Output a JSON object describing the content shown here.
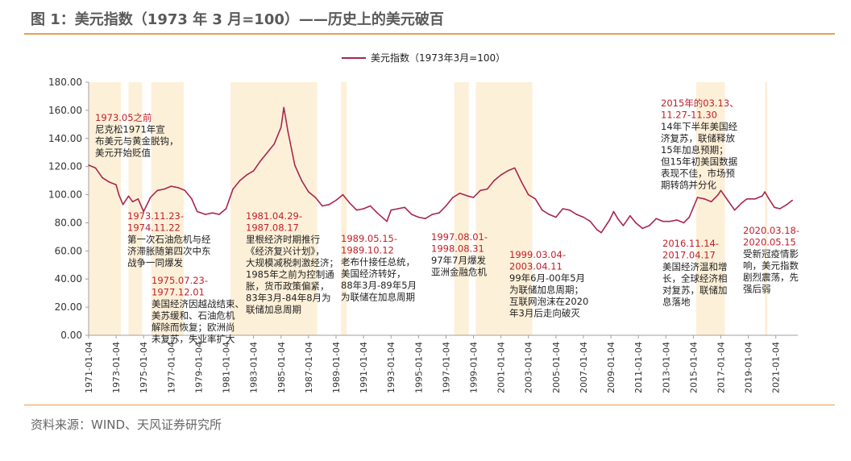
{
  "figure": {
    "title": "图 1：美元指数（1973 年 3 月=100）——历史上的美元破百",
    "source": "资料来源：WIND、天风证券研究所"
  },
  "colors": {
    "line": "#a8264f",
    "shade": "#fdf0d8",
    "annotation_red": "#c0202a",
    "annotation_dark": "#222222",
    "rule": "#e8a04a",
    "axis": "#a0a0a0"
  },
  "chart_data": {
    "type": "line",
    "legend": "美元指数（1973年3月=100）",
    "legend_position": "top-center",
    "ylim": [
      0,
      180
    ],
    "yticks": [
      "0.00",
      "20.00",
      "40.00",
      "60.00",
      "80.00",
      "100.00",
      "120.00",
      "140.00",
      "160.00",
      "180.00"
    ],
    "xticks": [
      "1971-01-04",
      "1973-01-04",
      "1975-01-04",
      "1977-01-04",
      "1979-01-04",
      "1981-01-04",
      "1983-01-04",
      "1985-01-04",
      "1987-01-04",
      "1989-01-04",
      "1991-01-04",
      "1993-01-04",
      "1995-01-04",
      "1997-01-04",
      "1999-01-04",
      "2001-01-04",
      "2003-01-04",
      "2005-01-04",
      "2007-01-04",
      "2009-01-04",
      "2011-01-04",
      "2013-01-04",
      "2015-01-04",
      "2017-01-04",
      "2019-01-04",
      "2021-01-04"
    ],
    "grid": false,
    "series": [
      {
        "name": "美元指数（1973年3月=100）",
        "x": [
          1971.0,
          1971.5,
          1972.0,
          1972.5,
          1973.0,
          1973.2,
          1973.5,
          1973.9,
          1974.2,
          1974.6,
          1975.0,
          1975.5,
          1976.0,
          1976.5,
          1977.0,
          1977.5,
          1978.0,
          1978.5,
          1978.9,
          1979.5,
          1980.0,
          1980.5,
          1981.0,
          1981.5,
          1982.0,
          1982.5,
          1983.0,
          1983.5,
          1984.0,
          1984.5,
          1985.0,
          1985.2,
          1985.5,
          1986.0,
          1986.5,
          1987.0,
          1987.5,
          1988.0,
          1988.5,
          1989.0,
          1989.5,
          1990.0,
          1990.5,
          1991.0,
          1991.5,
          1992.0,
          1992.7,
          1993.0,
          1993.5,
          1994.0,
          1994.5,
          1995.0,
          1995.5,
          1996.0,
          1996.5,
          1997.0,
          1997.5,
          1998.0,
          1998.6,
          1999.0,
          1999.5,
          2000.0,
          2000.5,
          2001.0,
          2001.5,
          2002.0,
          2002.5,
          2003.0,
          2003.5,
          2004.0,
          2004.5,
          2005.0,
          2005.5,
          2006.0,
          2006.5,
          2007.0,
          2007.5,
          2008.0,
          2008.3,
          2008.9,
          2009.2,
          2009.5,
          2009.9,
          2010.4,
          2010.8,
          2011.3,
          2011.8,
          2012.3,
          2012.8,
          2013.3,
          2013.8,
          2014.3,
          2014.7,
          2015.0,
          2015.3,
          2015.8,
          2016.3,
          2016.8,
          2017.0,
          2017.5,
          2018.0,
          2018.5,
          2018.9,
          2019.5,
          2020.0,
          2020.2,
          2020.5,
          2020.9,
          2021.3,
          2021.8,
          2022.2
        ],
        "y": [
          121,
          119,
          112,
          109,
          107,
          100,
          93,
          99,
          95,
          97,
          88,
          98,
          103,
          104,
          106,
          105,
          103,
          97,
          88,
          86,
          87,
          86,
          90,
          104,
          110,
          114,
          117,
          124,
          130,
          136,
          148,
          162,
          145,
          121,
          110,
          102,
          98,
          92,
          93,
          96,
          100,
          94,
          89,
          90,
          92,
          87,
          81,
          89,
          90,
          91,
          86,
          84,
          83,
          86,
          87,
          92,
          98,
          101,
          99,
          98,
          103,
          104,
          110,
          114,
          117,
          119,
          109,
          100,
          97,
          89,
          86,
          84,
          90,
          89,
          86,
          84,
          81,
          75,
          73,
          82,
          88,
          83,
          78,
          85,
          80,
          76,
          78,
          83,
          81,
          81,
          82,
          80,
          84,
          91,
          98,
          97,
          95,
          100,
          103,
          96,
          89,
          94,
          97,
          97,
          99,
          102,
          97,
          91,
          90,
          93,
          96
        ]
      }
    ],
    "shaded_periods": [
      {
        "start": 1971.0,
        "end": 1973.35
      },
      {
        "start": 1973.9,
        "end": 1974.9
      },
      {
        "start": 1975.55,
        "end": 1977.92
      },
      {
        "start": 1981.32,
        "end": 1987.63
      },
      {
        "start": 1989.37,
        "end": 1989.78
      },
      {
        "start": 1997.6,
        "end": 1998.66
      },
      {
        "start": 1999.17,
        "end": 2003.28
      },
      {
        "start": 2015.2,
        "end": 2017.3
      },
      {
        "start": 2020.2,
        "end": 2020.38
      }
    ],
    "annotations": [
      {
        "date": "1973.05之前",
        "text": [
          "尼克松1971年宣",
          "布美元与黄金脱钩，",
          "美元开始贬值"
        ]
      },
      {
        "date": "1973.11.23-\n1974.11.22",
        "text": [
          "第一次石油危机与经",
          "济滞胀随第四次中东",
          "战争一同爆发"
        ]
      },
      {
        "date": "1975.07.23-\n1977.12.01",
        "text": [
          "美国经济因越战结束、",
          "美苏缓和、石油危机",
          "解除而恢复；欧洲尚",
          "未复苏，失业率扩大"
        ]
      },
      {
        "date": "1981.04.29-\n1987.08.17",
        "text": [
          "里根经济时期推行",
          "《经济复兴计划》，",
          "大规模减税刺激经济；",
          "1985年之前为控制通",
          "胀，货币政策偏紧，",
          "83年3月-84年8月为",
          "联储加息周期"
        ]
      },
      {
        "date": "1989.05.15-\n1989.10.12",
        "text": [
          "老布什接任总统，",
          "美国经济转好，",
          "88年3月-89年5月",
          "为联储在加息周期"
        ]
      },
      {
        "date": "1997.08.01-\n1998.08.31",
        "text": [
          "97年7月爆发",
          "亚洲金融危机"
        ]
      },
      {
        "date": "1999.03.04-\n2003.04.11",
        "text": [
          "99年6月-00年5月",
          "为联储加息周期；",
          "互联网泡沫在2020",
          "年3月后走向破灭"
        ]
      },
      {
        "date": "2015年的03.13、\n11.27-11.30",
        "text": [
          "14年下半年美国经",
          "济复苏，联储释放",
          "15年加息预期；",
          "但15年初美国数据",
          "表现不佳，市场预",
          "期转鸽并分化"
        ]
      },
      {
        "date": "2016.11.14-\n2017.04.17",
        "text": [
          "美国经济温和增",
          "长，全球经济相",
          "对复苏，联储加",
          "息落地"
        ]
      },
      {
        "date": "2020.03.18-\n2020.05.15",
        "text": [
          "受新冠疫情影",
          "响，美元指数",
          "剧烈震荡，先",
          "强后弱"
        ]
      }
    ]
  }
}
